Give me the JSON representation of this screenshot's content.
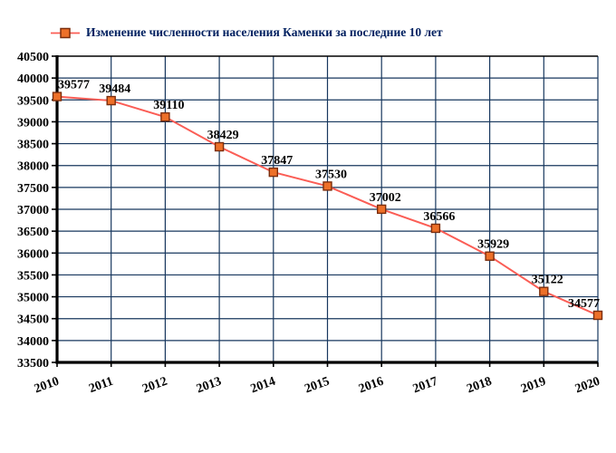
{
  "chart_data": {
    "type": "line",
    "legend": "Изменение численности населения Каменки за последние 10 лет",
    "title": "",
    "xlabel": "",
    "ylabel": "",
    "x": [
      2010,
      2011,
      2012,
      2013,
      2014,
      2015,
      2016,
      2017,
      2018,
      2019,
      2020
    ],
    "values": [
      39577,
      39484,
      39110,
      38429,
      37847,
      37530,
      37002,
      36566,
      35929,
      35122,
      34577
    ],
    "point_labels": [
      "39577",
      "39484",
      "39110",
      "38429",
      "37847",
      "37530",
      "37002",
      "36566",
      "35929",
      "35122",
      "34577"
    ],
    "ylim": [
      33500,
      40500
    ],
    "ytick_step": 500,
    "yticks": [
      33500,
      34000,
      34500,
      35000,
      35500,
      36000,
      36500,
      37000,
      37500,
      38000,
      38500,
      39000,
      39500,
      40000,
      40500
    ],
    "grid": true,
    "legend_position": "top-left",
    "colors": {
      "line": "#fb5d55",
      "marker_fill": "#ed7029",
      "marker_border": "#7b2d0c",
      "grid": "#17375e",
      "axis": "#000000",
      "point_label_text": "#000000",
      "legend_text": "#002060",
      "background": "#ffffff"
    }
  }
}
